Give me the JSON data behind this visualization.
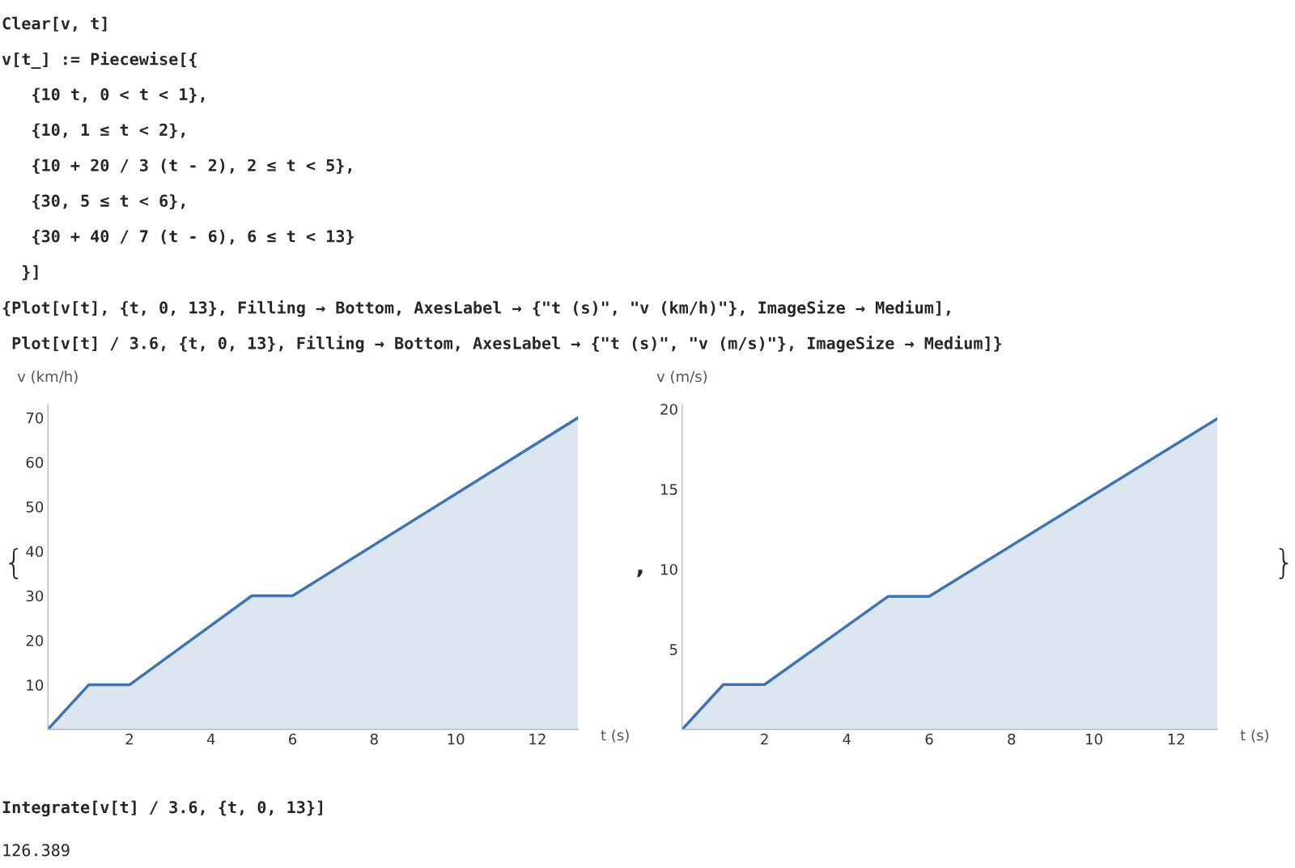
{
  "chart_data": [
    {
      "type": "area",
      "x": [
        0,
        1,
        2,
        5,
        6,
        13
      ],
      "xlabel": "t (s)",
      "ylabel": "v (km/h)",
      "series": [
        {
          "color": "#3e74b3",
          "values": [
            0,
            10,
            10,
            30,
            30,
            70
          ]
        }
      ],
      "xlim": [
        0,
        13
      ],
      "xticks": [
        2,
        4,
        6,
        8,
        10,
        12
      ],
      "ylim": [
        0,
        73
      ],
      "yticks": [
        10,
        20,
        30,
        40,
        50,
        60,
        70
      ],
      "grid": false,
      "annotations": [
        "Clear[v, t]",
        "v[t_] := Piecewise[{",
        "   {10 t, 0 < t < 1},",
        "   {10, 1 ≤ t < 2},",
        "   {10 + 20 / 3 (t - 2), 2 ≤ t < 5},",
        "   {30, 5 ≤ t < 6},",
        "   {30 + 40 / 7 (t - 6), 6 ≤ t < 13}",
        "  }]",
        "{Plot[v[t], {t, 0, 13}, Filling → Bottom, AxesLabel → {\"t (s)\", \"v (km/h)\"}, ImageSize → Medium],",
        " Plot[v[t] / 3.6, {t, 0, 13}, Filling → Bottom, AxesLabel → {\"t (s)\", \"v (m/s)\"}, ImageSize → Medium]}",
        "{",
        ","
      ]
    },
    {
      "type": "area",
      "x": [
        0,
        1,
        2,
        5,
        6,
        13
      ],
      "xlabel": "t (s)",
      "ylabel": "v (m/s)",
      "series": [
        {
          "color": "#3e74b3",
          "values": [
            0,
            2.8,
            2.8,
            8.3,
            8.3,
            19.4
          ]
        }
      ],
      "xlim": [
        0,
        13
      ],
      "xticks": [
        2,
        4,
        6,
        8,
        10,
        12
      ],
      "ylim": [
        0,
        20.3
      ],
      "yticks": [
        5,
        10,
        15,
        20
      ],
      "grid": false,
      "annotations": [
        "}",
        "Integrate[v[t] / 3.6, {t, 0, 13}]",
        "126.389"
      ]
    }
  ]
}
